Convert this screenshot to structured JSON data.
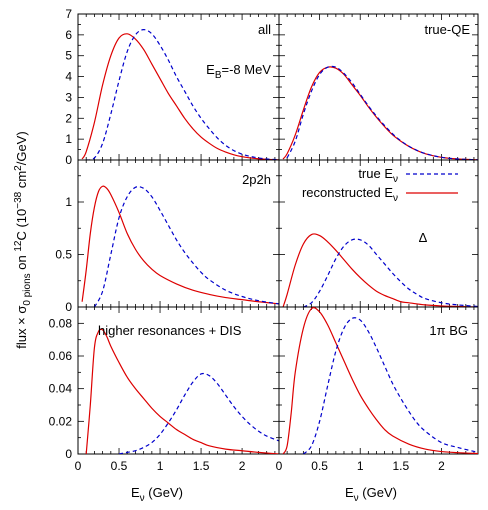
{
  "figure": {
    "ylabel_main": "flux × σ",
    "ylabel_sub": "0 pions",
    "ylabel_mid": " on ",
    "ylabel_sup": "12",
    "ylabel_tail": "C (10",
    "ylabel_exp": "−38",
    "ylabel_unit": " cm",
    "ylabel_unit_exp": "2",
    "ylabel_end": "/GeV)",
    "xlabel_main": "E",
    "xlabel_sub": "ν",
    "xlabel_tail": "  (GeV)",
    "legend": [
      {
        "label_main": "true E",
        "label_sub": "ν",
        "style": "dashed",
        "color": "#0000cc"
      },
      {
        "label_main": "reconstructed E",
        "label_sub": "ν",
        "style": "solid",
        "color": "#dd0000"
      }
    ],
    "colors": {
      "true": "#0000cc",
      "reconstructed": "#dd0000"
    }
  },
  "chart_data": [
    {
      "type": "line",
      "panel": "top-left",
      "annotation": "all",
      "annotation2_main": "E",
      "annotation2_sub": "B",
      "annotation2_tail": "=-8 MeV",
      "xlim": [
        0,
        2.45
      ],
      "ylim": [
        0,
        7
      ],
      "yticks": [
        0,
        1,
        2,
        3,
        4,
        5,
        6,
        7
      ],
      "yticklabels": [
        "0",
        "1",
        "2",
        "3",
        "4",
        "5",
        "6",
        "7"
      ],
      "series": [
        {
          "key": "reconstructed",
          "x": [
            0.05,
            0.1,
            0.2,
            0.3,
            0.4,
            0.5,
            0.6,
            0.7,
            0.8,
            0.9,
            1.0,
            1.1,
            1.2,
            1.3,
            1.4,
            1.5,
            1.6,
            1.7,
            1.8,
            1.9,
            2.0,
            2.1,
            2.2,
            2.3,
            2.45
          ],
          "y": [
            0.05,
            0.4,
            1.8,
            3.6,
            5.0,
            5.85,
            6.05,
            5.8,
            5.3,
            4.6,
            3.9,
            3.2,
            2.6,
            2.0,
            1.5,
            1.1,
            0.8,
            0.55,
            0.38,
            0.25,
            0.16,
            0.1,
            0.06,
            0.03,
            0.01
          ]
        },
        {
          "key": "true",
          "x": [
            0.1,
            0.2,
            0.3,
            0.4,
            0.5,
            0.6,
            0.7,
            0.8,
            0.9,
            1.0,
            1.1,
            1.2,
            1.3,
            1.4,
            1.5,
            1.6,
            1.7,
            1.8,
            1.9,
            2.0,
            2.1,
            2.2,
            2.3,
            2.45
          ],
          "y": [
            0.0,
            0.1,
            0.8,
            2.2,
            3.8,
            5.2,
            6.0,
            6.25,
            6.05,
            5.5,
            4.8,
            4.0,
            3.3,
            2.6,
            2.0,
            1.5,
            1.05,
            0.7,
            0.45,
            0.28,
            0.17,
            0.1,
            0.05,
            0.01
          ]
        }
      ]
    },
    {
      "type": "line",
      "panel": "top-right",
      "annotation": "true-QE",
      "xlim": [
        0,
        2.45
      ],
      "ylim": [
        0,
        7
      ],
      "series": [
        {
          "key": "reconstructed",
          "x": [
            0.05,
            0.1,
            0.2,
            0.3,
            0.4,
            0.5,
            0.6,
            0.7,
            0.8,
            0.9,
            1.0,
            1.1,
            1.2,
            1.3,
            1.4,
            1.5,
            1.6,
            1.7,
            1.8,
            1.9,
            2.0,
            2.1,
            2.2,
            2.3,
            2.45
          ],
          "y": [
            0.05,
            0.3,
            1.2,
            2.4,
            3.5,
            4.2,
            4.45,
            4.4,
            4.1,
            3.6,
            3.1,
            2.55,
            2.05,
            1.6,
            1.2,
            0.9,
            0.65,
            0.45,
            0.3,
            0.2,
            0.13,
            0.08,
            0.05,
            0.03,
            0.01
          ]
        },
        {
          "key": "true",
          "x": [
            0.1,
            0.2,
            0.3,
            0.4,
            0.5,
            0.6,
            0.7,
            0.8,
            0.9,
            1.0,
            1.1,
            1.2,
            1.3,
            1.4,
            1.5,
            1.6,
            1.7,
            1.8,
            1.9,
            2.0,
            2.1,
            2.2,
            2.3,
            2.45
          ],
          "y": [
            0.1,
            0.9,
            2.2,
            3.3,
            4.1,
            4.45,
            4.45,
            4.15,
            3.7,
            3.15,
            2.6,
            2.1,
            1.65,
            1.25,
            0.92,
            0.66,
            0.46,
            0.31,
            0.21,
            0.13,
            0.08,
            0.05,
            0.03,
            0.01
          ]
        }
      ]
    },
    {
      "type": "line",
      "panel": "mid-left",
      "annotation": "2p2h",
      "xlim": [
        0,
        2.45
      ],
      "ylim": [
        0,
        1.4
      ],
      "yticks": [
        0,
        0.5,
        1
      ],
      "yticklabels": [
        "0",
        "0.5",
        "1"
      ],
      "series": [
        {
          "key": "reconstructed",
          "x": [
            0.05,
            0.1,
            0.15,
            0.2,
            0.25,
            0.3,
            0.35,
            0.4,
            0.5,
            0.6,
            0.7,
            0.8,
            0.9,
            1.0,
            1.2,
            1.4,
            1.6,
            1.8,
            2.0,
            2.2,
            2.45
          ],
          "y": [
            0.05,
            0.35,
            0.7,
            0.95,
            1.1,
            1.15,
            1.13,
            1.07,
            0.9,
            0.7,
            0.55,
            0.44,
            0.36,
            0.3,
            0.22,
            0.16,
            0.12,
            0.09,
            0.07,
            0.05,
            0.03
          ]
        },
        {
          "key": "true",
          "x": [
            0.2,
            0.3,
            0.4,
            0.5,
            0.6,
            0.7,
            0.8,
            0.9,
            1.0,
            1.1,
            1.2,
            1.3,
            1.4,
            1.5,
            1.6,
            1.8,
            2.0,
            2.2,
            2.45
          ],
          "y": [
            0.0,
            0.15,
            0.5,
            0.85,
            1.05,
            1.14,
            1.13,
            1.05,
            0.92,
            0.78,
            0.64,
            0.52,
            0.42,
            0.33,
            0.26,
            0.16,
            0.1,
            0.06,
            0.03
          ]
        }
      ]
    },
    {
      "type": "line",
      "panel": "mid-right",
      "annotation": "Δ",
      "xlim": [
        0,
        2.45
      ],
      "ylim": [
        0,
        1.4
      ],
      "series": [
        {
          "key": "reconstructed",
          "x": [
            0.05,
            0.1,
            0.2,
            0.3,
            0.4,
            0.5,
            0.6,
            0.7,
            0.8,
            0.9,
            1.0,
            1.1,
            1.2,
            1.3,
            1.4,
            1.5,
            1.6,
            1.8,
            2.0,
            2.2,
            2.45
          ],
          "y": [
            0.0,
            0.12,
            0.4,
            0.6,
            0.69,
            0.68,
            0.62,
            0.54,
            0.45,
            0.36,
            0.28,
            0.21,
            0.15,
            0.11,
            0.08,
            0.05,
            0.04,
            0.02,
            0.01,
            0.005,
            0.0
          ]
        },
        {
          "key": "true",
          "x": [
            0.3,
            0.4,
            0.5,
            0.6,
            0.7,
            0.8,
            0.9,
            1.0,
            1.1,
            1.2,
            1.3,
            1.4,
            1.5,
            1.6,
            1.7,
            1.8,
            2.0,
            2.2,
            2.45
          ],
          "y": [
            0.0,
            0.04,
            0.15,
            0.3,
            0.46,
            0.58,
            0.64,
            0.64,
            0.59,
            0.5,
            0.41,
            0.32,
            0.24,
            0.17,
            0.12,
            0.08,
            0.04,
            0.02,
            0.005
          ]
        }
      ]
    },
    {
      "type": "line",
      "panel": "bottom-left",
      "annotation": "higher resonances + DIS",
      "xlim": [
        0,
        2.45
      ],
      "ylim": [
        0,
        0.09
      ],
      "yticks": [
        0,
        0.02,
        0.04,
        0.06,
        0.08
      ],
      "yticklabels": [
        "0",
        "0.02",
        "0.04",
        "0.06",
        "0.08"
      ],
      "xticks": [
        0,
        0.5,
        1,
        1.5,
        2
      ],
      "xticklabels": [
        "0",
        "0.5",
        "1",
        "1.5",
        "2"
      ],
      "series": [
        {
          "key": "reconstructed",
          "x": [
            0.1,
            0.15,
            0.2,
            0.25,
            0.3,
            0.35,
            0.4,
            0.5,
            0.6,
            0.7,
            0.8,
            0.9,
            1.0,
            1.1,
            1.2,
            1.3,
            1.4,
            1.5,
            1.6,
            1.8,
            2.0,
            2.2,
            2.45
          ],
          "y": [
            0.0,
            0.03,
            0.065,
            0.075,
            0.076,
            0.072,
            0.066,
            0.056,
            0.047,
            0.04,
            0.034,
            0.028,
            0.023,
            0.019,
            0.015,
            0.012,
            0.009,
            0.007,
            0.005,
            0.003,
            0.002,
            0.001,
            0.0
          ]
        },
        {
          "key": "true",
          "x": [
            0.5,
            0.6,
            0.7,
            0.8,
            0.9,
            1.0,
            1.1,
            1.2,
            1.3,
            1.4,
            1.5,
            1.6,
            1.7,
            1.8,
            1.9,
            2.0,
            2.1,
            2.2,
            2.3,
            2.45
          ],
          "y": [
            0.0,
            0.001,
            0.002,
            0.004,
            0.007,
            0.012,
            0.019,
            0.027,
            0.036,
            0.044,
            0.049,
            0.048,
            0.043,
            0.036,
            0.029,
            0.023,
            0.018,
            0.014,
            0.011,
            0.008
          ]
        }
      ]
    },
    {
      "type": "line",
      "panel": "bottom-right",
      "annotation": "1π BG",
      "xlim": [
        0,
        2.45
      ],
      "ylim": [
        0,
        0.09
      ],
      "xticks": [
        0,
        0.5,
        1,
        1.5,
        2
      ],
      "xticklabels": [
        "0",
        "0.5",
        "1",
        "1.5",
        "2"
      ],
      "series": [
        {
          "key": "reconstructed",
          "x": [
            0.05,
            0.1,
            0.15,
            0.2,
            0.3,
            0.4,
            0.5,
            0.6,
            0.7,
            0.8,
            0.9,
            1.0,
            1.1,
            1.2,
            1.3,
            1.4,
            1.6,
            1.8,
            2.0,
            2.2,
            2.45
          ],
          "y": [
            0.0,
            0.005,
            0.025,
            0.05,
            0.077,
            0.089,
            0.087,
            0.079,
            0.068,
            0.057,
            0.046,
            0.036,
            0.028,
            0.021,
            0.015,
            0.011,
            0.006,
            0.003,
            0.0015,
            0.0008,
            0.0003
          ]
        },
        {
          "key": "true",
          "x": [
            0.3,
            0.4,
            0.5,
            0.6,
            0.7,
            0.8,
            0.9,
            1.0,
            1.1,
            1.2,
            1.3,
            1.4,
            1.5,
            1.6,
            1.7,
            1.8,
            2.0,
            2.2,
            2.45
          ],
          "y": [
            0.0,
            0.005,
            0.02,
            0.042,
            0.063,
            0.077,
            0.083,
            0.082,
            0.075,
            0.065,
            0.054,
            0.043,
            0.034,
            0.026,
            0.019,
            0.014,
            0.007,
            0.004,
            0.001
          ]
        }
      ]
    }
  ]
}
